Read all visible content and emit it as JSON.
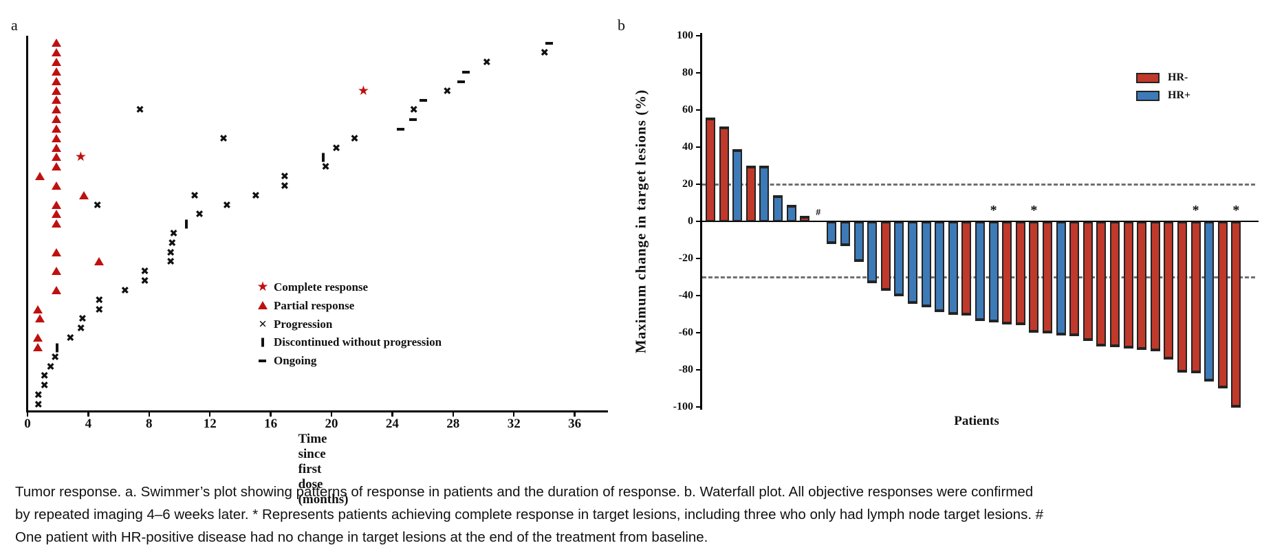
{
  "caption": "Tumor response. a. Swimmer’s plot showing patterns of response in patients and the duration of response. b. Waterfall plot. All objective responses were confirmed by repeated imaging 4–6 weeks later. * Represents patients achieving complete response in target lesions, including three who only had lymph node target lesions. # One patient with HR-positive disease had no change in target lesions at the end of the treatment from baseline.",
  "colors": {
    "hr_negative": "#c0392b",
    "hr_positive": "#3d7ab8",
    "swimmer_bar_dark": "#2a5390",
    "swimmer_bar_light": "#a6b9d8",
    "marker_red": "#bf1010",
    "marker_black": "#111111",
    "dashed_line": "#6f6f6f",
    "axis": "#000000"
  },
  "chart_data": [
    {
      "type": "swimmer",
      "panel_label": "a",
      "xlabel": "Time since first dose (months)",
      "x_ticks": [
        0,
        4,
        8,
        12,
        16,
        20,
        24,
        28,
        32,
        36
      ],
      "x_axis_end": 38.2,
      "legend": [
        {
          "marker": "star",
          "label": "Complete response"
        },
        {
          "marker": "triangle",
          "label": "Partial response"
        },
        {
          "marker": "x",
          "label": "Progression"
        },
        {
          "marker": "bar",
          "label": "Discontinued without progression"
        },
        {
          "marker": "dash",
          "label": "Ongoing"
        }
      ],
      "patients": [
        {
          "duration": 34.0,
          "end": "ongoing",
          "events": [
            [
              "pr",
              1.9
            ]
          ]
        },
        {
          "duration": 33.7,
          "end": "progression",
          "events": [
            [
              "pr",
              1.9
            ]
          ]
        },
        {
          "duration": 29.9,
          "end": "progression",
          "events": [
            [
              "pr",
              1.9
            ]
          ]
        },
        {
          "duration": 28.5,
          "end": "ongoing",
          "events": [
            [
              "pr",
              1.9
            ]
          ]
        },
        {
          "duration": 28.2,
          "end": "ongoing",
          "events": [
            [
              "pr",
              1.9
            ]
          ]
        },
        {
          "duration": 27.3,
          "end": "progression",
          "events": [
            [
              "pr",
              1.9
            ],
            [
              "cr",
              22.1
            ]
          ]
        },
        {
          "duration": 25.7,
          "end": "ongoing",
          "events": [
            [
              "pr",
              1.9
            ]
          ]
        },
        {
          "duration": 25.1,
          "end": "progression",
          "events": [
            [
              "pr",
              1.9
            ],
            [
              "pd",
              7.4
            ]
          ]
        },
        {
          "duration": 25.0,
          "end": "ongoing",
          "events": [
            [
              "pr",
              1.9
            ]
          ]
        },
        {
          "duration": 24.2,
          "end": "ongoing",
          "events": [
            [
              "pr",
              1.9
            ]
          ]
        },
        {
          "duration": 21.2,
          "end": "progression",
          "events": [
            [
              "pr",
              1.9
            ],
            [
              "pd",
              12.9
            ]
          ]
        },
        {
          "duration": 20.0,
          "end": "progression",
          "events": [
            [
              "pr",
              1.9
            ]
          ]
        },
        {
          "duration": 19.4,
          "end": "discontinued",
          "events": [
            [
              "pr",
              1.9
            ],
            [
              "cr",
              3.5
            ]
          ]
        },
        {
          "duration": 19.3,
          "end": "progression",
          "events": [
            [
              "pr",
              1.9
            ]
          ]
        },
        {
          "duration": 16.6,
          "end": "progression",
          "events": [
            [
              "pr",
              0.8
            ]
          ]
        },
        {
          "duration": 16.6,
          "end": "progression",
          "events": [
            [
              "pr",
              1.9
            ]
          ]
        },
        {
          "duration": 14.7,
          "end": "progression",
          "events": [
            [
              "pr",
              3.7
            ],
            [
              "pd",
              11.0
            ]
          ]
        },
        {
          "duration": 12.8,
          "end": "progression",
          "events": [
            [
              "pr",
              1.9
            ],
            [
              "pd",
              4.6
            ]
          ]
        },
        {
          "duration": 11.0,
          "end": "progression",
          "events": [
            [
              "pr",
              1.9
            ]
          ]
        },
        {
          "duration": 10.4,
          "end": "discontinued",
          "events": [
            [
              "pr",
              1.9
            ]
          ]
        },
        {
          "duration": 9.3,
          "end": "progression",
          "events": []
        },
        {
          "duration": 9.2,
          "end": "progression",
          "events": []
        },
        {
          "duration": 9.1,
          "end": "progression",
          "events": [
            [
              "pr",
              1.9
            ]
          ]
        },
        {
          "duration": 9.1,
          "end": "progression",
          "events": [
            [
              "pr",
              4.7
            ]
          ]
        },
        {
          "duration": 7.4,
          "end": "progression",
          "events": [
            [
              "pr",
              1.9
            ]
          ]
        },
        {
          "duration": 7.4,
          "end": "progression",
          "events": []
        },
        {
          "duration": 6.1,
          "end": "progression",
          "events": [
            [
              "pr",
              1.9
            ]
          ]
        },
        {
          "duration": 4.4,
          "end": "progression",
          "events": []
        },
        {
          "duration": 4.4,
          "end": "progression",
          "events": [
            [
              "pr",
              0.7
            ]
          ]
        },
        {
          "duration": 3.3,
          "end": "progression",
          "events": [
            [
              "pr",
              0.8
            ]
          ]
        },
        {
          "duration": 3.2,
          "end": "progression",
          "events": []
        },
        {
          "duration": 2.5,
          "end": "progression",
          "events": [
            [
              "pr",
              0.7
            ]
          ]
        },
        {
          "duration": 1.9,
          "end": "discontinued",
          "events": [
            [
              "pr",
              0.7
            ]
          ]
        },
        {
          "duration": 1.5,
          "end": "progression",
          "events": []
        },
        {
          "duration": 1.2,
          "end": "progression",
          "events": []
        },
        {
          "duration": 0.8,
          "end": "progression",
          "events": []
        },
        {
          "duration": 0.8,
          "end": "progression",
          "events": []
        },
        {
          "duration": 0.4,
          "end": "progression",
          "events": []
        },
        {
          "duration": 0.4,
          "end": "progression",
          "events": []
        }
      ]
    },
    {
      "type": "waterfall",
      "panel_label": "b",
      "ylabel": "Maximum change in target lesions (%)",
      "xlabel": "Patients",
      "y_ticks": [
        100,
        80,
        60,
        40,
        20,
        0,
        -20,
        -40,
        -60,
        -80,
        -100
      ],
      "ylim": [
        -100,
        100
      ],
      "reference_lines": [
        20,
        -30
      ],
      "legend": [
        {
          "label": "HR-",
          "hr": "HR-"
        },
        {
          "label": "HR+",
          "hr": "HR+"
        }
      ],
      "bars": [
        {
          "value": 56,
          "hr": "HR-",
          "note": ""
        },
        {
          "value": 51,
          "hr": "HR-",
          "note": ""
        },
        {
          "value": 39,
          "hr": "HR+",
          "note": ""
        },
        {
          "value": 30,
          "hr": "HR-",
          "note": ""
        },
        {
          "value": 30,
          "hr": "HR+",
          "note": ""
        },
        {
          "value": 14,
          "hr": "HR+",
          "note": ""
        },
        {
          "value": 9,
          "hr": "HR+",
          "note": ""
        },
        {
          "value": 3,
          "hr": "HR-",
          "note": ""
        },
        {
          "value": 0,
          "hr": "HR+",
          "note": "#"
        },
        {
          "value": -12,
          "hr": "HR+",
          "note": ""
        },
        {
          "value": -13,
          "hr": "HR+",
          "note": ""
        },
        {
          "value": -21.5,
          "hr": "HR+",
          "note": ""
        },
        {
          "value": -33,
          "hr": "HR+",
          "note": ""
        },
        {
          "value": -37,
          "hr": "HR-",
          "note": ""
        },
        {
          "value": -40,
          "hr": "HR+",
          "note": ""
        },
        {
          "value": -44,
          "hr": "HR+",
          "note": ""
        },
        {
          "value": -46,
          "hr": "HR+",
          "note": ""
        },
        {
          "value": -48.5,
          "hr": "HR+",
          "note": ""
        },
        {
          "value": -50,
          "hr": "HR+",
          "note": ""
        },
        {
          "value": -50.5,
          "hr": "HR-",
          "note": ""
        },
        {
          "value": -53.5,
          "hr": "HR+",
          "note": ""
        },
        {
          "value": -54,
          "hr": "HR+",
          "note": "*"
        },
        {
          "value": -55,
          "hr": "HR-",
          "note": ""
        },
        {
          "value": -55.5,
          "hr": "HR-",
          "note": ""
        },
        {
          "value": -59.5,
          "hr": "HR-",
          "note": "*"
        },
        {
          "value": -60,
          "hr": "HR-",
          "note": ""
        },
        {
          "value": -61,
          "hr": "HR+",
          "note": ""
        },
        {
          "value": -61.5,
          "hr": "HR-",
          "note": ""
        },
        {
          "value": -64,
          "hr": "HR-",
          "note": ""
        },
        {
          "value": -67,
          "hr": "HR-",
          "note": ""
        },
        {
          "value": -67.5,
          "hr": "HR-",
          "note": ""
        },
        {
          "value": -68,
          "hr": "HR-",
          "note": ""
        },
        {
          "value": -69,
          "hr": "HR-",
          "note": ""
        },
        {
          "value": -69.5,
          "hr": "HR-",
          "note": ""
        },
        {
          "value": -74,
          "hr": "HR-",
          "note": ""
        },
        {
          "value": -81,
          "hr": "HR-",
          "note": ""
        },
        {
          "value": -81.5,
          "hr": "HR-",
          "note": "*"
        },
        {
          "value": -86,
          "hr": "HR+",
          "note": ""
        },
        {
          "value": -89.5,
          "hr": "HR-",
          "note": ""
        },
        {
          "value": -100,
          "hr": "HR-",
          "note": "*"
        }
      ]
    }
  ]
}
